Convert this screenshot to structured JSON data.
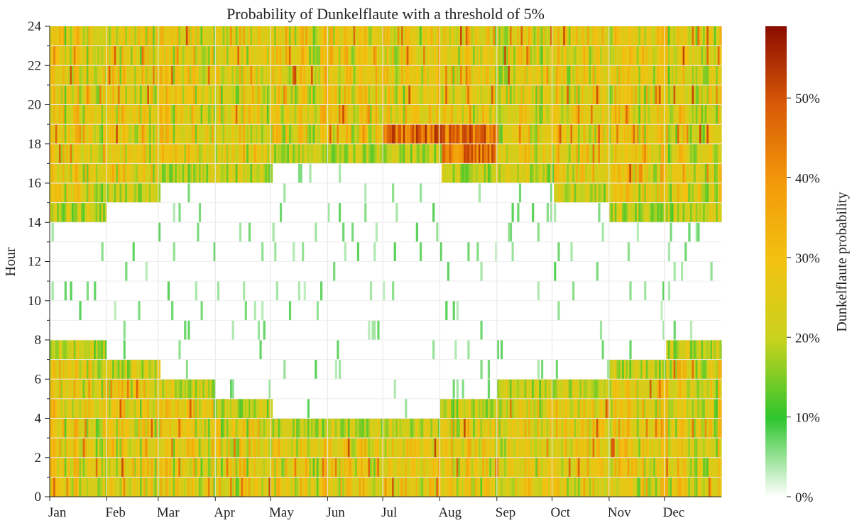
{
  "chart_data": {
    "type": "heatmap",
    "title": "Probability of Dunkelflaute with a threshold of 5%",
    "xlabel": "",
    "ylabel": "Hour",
    "x_tick_labels": [
      "Jan",
      "Feb",
      "Mar",
      "Apr",
      "May",
      "Jun",
      "Jul",
      "Aug",
      "Sep",
      "Oct",
      "Nov",
      "Dec"
    ],
    "x_tick_days": [
      1,
      32,
      60,
      91,
      121,
      152,
      182,
      213,
      244,
      274,
      305,
      335
    ],
    "x_range_days": [
      1,
      365
    ],
    "y_ticks": [
      0,
      2,
      4,
      6,
      8,
      10,
      12,
      14,
      16,
      18,
      20,
      22,
      24
    ],
    "y_range": [
      0,
      24
    ],
    "colorbar": {
      "label": "Dunkelflaute probability",
      "ticks": [
        0,
        10,
        20,
        30,
        40,
        50
      ],
      "tick_labels": [
        "0%",
        "10%",
        "20%",
        "30%",
        "40%",
        "50%"
      ],
      "range": [
        0,
        59
      ],
      "colors": [
        "#ffffff",
        "#2ec52e",
        "#c8d21e",
        "#f2c211",
        "#f39a0a",
        "#d95a07",
        "#8b0c00"
      ]
    },
    "zero_region_hours_by_month": [
      {
        "month": "Jan",
        "start_hour": 8,
        "end_hour": 14
      },
      {
        "month": "Feb",
        "start_hour": 7,
        "end_hour": 15
      },
      {
        "month": "Mar",
        "start_hour": 6,
        "end_hour": 16
      },
      {
        "month": "Apr",
        "start_hour": 5,
        "end_hour": 16
      },
      {
        "month": "May",
        "start_hour": 4,
        "end_hour": 17
      },
      {
        "month": "Jun",
        "start_hour": 4,
        "end_hour": 17
      },
      {
        "month": "Jul",
        "start_hour": 4,
        "end_hour": 17
      },
      {
        "month": "Aug",
        "start_hour": 5,
        "end_hour": 16
      },
      {
        "month": "Sep",
        "start_hour": 6,
        "end_hour": 16
      },
      {
        "month": "Oct",
        "start_hour": 6,
        "end_hour": 15
      },
      {
        "month": "Nov",
        "start_hour": 7,
        "end_hour": 14
      },
      {
        "month": "Dec",
        "start_hour": 8,
        "end_hour": 14
      }
    ],
    "nonzero_probability_range_pct": [
      10,
      59
    ],
    "peak_region": {
      "months": [
        "Jul",
        "Aug"
      ],
      "hours": [
        17,
        19
      ],
      "probability_pct": 55
    }
  }
}
